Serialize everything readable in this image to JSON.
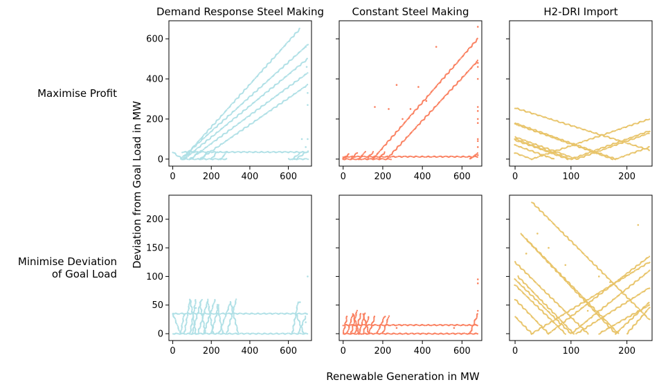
{
  "figure": {
    "ylabel": "Deviation from Goal Load in MW",
    "xlabel": "Renewable Generation in MW",
    "row_labels": [
      [
        "Maximise Profit"
      ],
      [
        "Minimise Deviation",
        "of Goal Load"
      ]
    ],
    "colors": {
      "demand_response": "#b0e0e6",
      "constant": "#fa8060",
      "h2dri": "#e8c46a"
    }
  },
  "chart_data": [
    {
      "type": "scatter",
      "title": "Demand Response Steel Making",
      "row": 0,
      "col": 0,
      "xlim": [
        -20,
        720
      ],
      "ylim": [
        -35,
        690
      ],
      "xticks": [
        0,
        200,
        400,
        600
      ],
      "yticks": [
        0,
        200,
        400,
        600
      ],
      "color": "#b0e0e6",
      "segments": [
        [
          [
            0,
            35
          ],
          [
            50,
            0
          ]
        ],
        [
          [
            50,
            0
          ],
          [
            660,
            650
          ]
        ],
        [
          [
            40,
            0
          ],
          [
            700,
            570
          ]
        ],
        [
          [
            60,
            0
          ],
          [
            700,
            500
          ]
        ],
        [
          [
            90,
            0
          ],
          [
            700,
            430
          ]
        ],
        [
          [
            140,
            0
          ],
          [
            700,
            370
          ]
        ],
        [
          [
            50,
            35
          ],
          [
            700,
            35
          ]
        ],
        [
          [
            50,
            0
          ],
          [
            280,
            0
          ]
        ],
        [
          [
            60,
            0
          ],
          [
            90,
            35
          ]
        ],
        [
          [
            100,
            0
          ],
          [
            130,
            35
          ]
        ],
        [
          [
            150,
            0
          ],
          [
            180,
            35
          ]
        ],
        [
          [
            200,
            0
          ],
          [
            230,
            35
          ]
        ],
        [
          [
            250,
            0
          ],
          [
            280,
            35
          ]
        ],
        [
          [
            620,
            0
          ],
          [
            660,
            30
          ]
        ],
        [
          [
            640,
            0
          ],
          [
            700,
            40
          ]
        ],
        [
          [
            600,
            0
          ],
          [
            700,
            0
          ]
        ]
      ],
      "points": [
        [
          690,
          560
        ],
        [
          695,
          460
        ],
        [
          700,
          330
        ],
        [
          700,
          100
        ],
        [
          690,
          60
        ],
        [
          670,
          100
        ],
        [
          700,
          270
        ],
        [
          630,
          0
        ]
      ]
    },
    {
      "type": "scatter",
      "title": "Constant Steel Making",
      "row": 0,
      "col": 1,
      "xlim": [
        -20,
        700
      ],
      "ylim": [
        -35,
        690
      ],
      "xticks": [
        0,
        200,
        400,
        600
      ],
      "yticks": [
        0,
        200,
        400,
        600
      ],
      "color": "#fa8060",
      "segments": [
        [
          [
            0,
            12
          ],
          [
            680,
            12
          ]
        ],
        [
          [
            0,
            0
          ],
          [
            240,
            0
          ]
        ],
        [
          [
            220,
            0
          ],
          [
            680,
            490
          ]
        ],
        [
          [
            150,
            0
          ],
          [
            680,
            600
          ]
        ],
        [
          [
            0,
            0
          ],
          [
            30,
            25
          ]
        ],
        [
          [
            40,
            0
          ],
          [
            70,
            30
          ]
        ],
        [
          [
            80,
            0
          ],
          [
            110,
            35
          ]
        ],
        [
          [
            120,
            0
          ],
          [
            150,
            35
          ]
        ],
        [
          [
            180,
            0
          ],
          [
            210,
            35
          ]
        ],
        [
          [
            640,
            0
          ],
          [
            680,
            30
          ]
        ]
      ],
      "points": [
        [
          470,
          560
        ],
        [
          420,
          290
        ],
        [
          380,
          360
        ],
        [
          270,
          370
        ],
        [
          160,
          260
        ],
        [
          230,
          250
        ],
        [
          680,
          660
        ],
        [
          680,
          480
        ],
        [
          680,
          460
        ],
        [
          680,
          400
        ],
        [
          680,
          260
        ],
        [
          680,
          240
        ],
        [
          680,
          200
        ],
        [
          680,
          180
        ],
        [
          680,
          100
        ],
        [
          680,
          90
        ],
        [
          680,
          60
        ],
        [
          680,
          20
        ],
        [
          340,
          250
        ],
        [
          300,
          200
        ]
      ]
    },
    {
      "type": "scatter",
      "title": "H2-DRI Import",
      "row": 0,
      "col": 2,
      "xlim": [
        -10,
        245
      ],
      "ylim": [
        -35,
        690
      ],
      "xticks": [
        0,
        100,
        200
      ],
      "yticks": [
        0,
        200,
        400,
        600
      ],
      "color": "#e8c46a",
      "segments": [
        [
          [
            0,
            255
          ],
          [
            240,
            45
          ]
        ],
        [
          [
            0,
            180
          ],
          [
            180,
            0
          ]
        ],
        [
          [
            0,
            110
          ],
          [
            110,
            0
          ]
        ],
        [
          [
            0,
            95
          ],
          [
            95,
            0
          ]
        ],
        [
          [
            0,
            70
          ],
          [
            70,
            0
          ]
        ],
        [
          [
            0,
            30
          ],
          [
            30,
            0
          ]
        ],
        [
          [
            30,
            0
          ],
          [
            240,
            200
          ]
        ],
        [
          [
            100,
            0
          ],
          [
            240,
            140
          ]
        ],
        [
          [
            110,
            0
          ],
          [
            240,
            130
          ]
        ],
        [
          [
            180,
            0
          ],
          [
            240,
            60
          ]
        ],
        [
          [
            0,
            175
          ],
          [
            175,
            0
          ]
        ],
        [
          [
            0,
            100
          ],
          [
            100,
            0
          ]
        ]
      ],
      "points": []
    },
    {
      "type": "scatter",
      "title": "",
      "row": 1,
      "col": 0,
      "xlim": [
        -20,
        720
      ],
      "ylim": [
        -12,
        242
      ],
      "xticks": [
        0,
        200,
        400,
        600
      ],
      "yticks": [
        0,
        50,
        100,
        150,
        200
      ],
      "color": "#b0e0e6",
      "segments": [
        [
          [
            0,
            35
          ],
          [
            700,
            35
          ]
        ],
        [
          [
            0,
            0
          ],
          [
            700,
            0
          ]
        ],
        [
          [
            0,
            35
          ],
          [
            40,
            0
          ]
        ],
        [
          [
            40,
            0
          ],
          [
            60,
            35
          ]
        ],
        [
          [
            60,
            0
          ],
          [
            90,
            60
          ]
        ],
        [
          [
            90,
            0
          ],
          [
            120,
            60
          ]
        ],
        [
          [
            100,
            0
          ],
          [
            150,
            60
          ]
        ],
        [
          [
            130,
            0
          ],
          [
            180,
            55
          ]
        ],
        [
          [
            160,
            0
          ],
          [
            220,
            60
          ]
        ],
        [
          [
            200,
            0
          ],
          [
            240,
            50
          ]
        ],
        [
          [
            240,
            0
          ],
          [
            300,
            55
          ]
        ],
        [
          [
            280,
            0
          ],
          [
            330,
            60
          ]
        ],
        [
          [
            90,
            60
          ],
          [
            120,
            0
          ]
        ],
        [
          [
            140,
            55
          ],
          [
            170,
            0
          ]
        ],
        [
          [
            180,
            60
          ],
          [
            210,
            0
          ]
        ],
        [
          [
            230,
            50
          ],
          [
            260,
            0
          ]
        ],
        [
          [
            300,
            55
          ],
          [
            340,
            0
          ]
        ],
        [
          [
            620,
            0
          ],
          [
            650,
            55
          ]
        ],
        [
          [
            650,
            0
          ],
          [
            690,
            30
          ]
        ],
        [
          [
            640,
            35
          ],
          [
            680,
            0
          ]
        ]
      ],
      "points": [
        [
          700,
          100
        ],
        [
          660,
          55
        ],
        [
          690,
          20
        ],
        [
          120,
          45
        ],
        [
          200,
          40
        ]
      ]
    },
    {
      "type": "scatter",
      "title": "",
      "row": 1,
      "col": 1,
      "xlim": [
        -20,
        700
      ],
      "ylim": [
        -12,
        242
      ],
      "xticks": [
        0,
        200,
        400,
        600
      ],
      "yticks": [
        0,
        50,
        100,
        150,
        200
      ],
      "color": "#fa8060",
      "segments": [
        [
          [
            0,
            15
          ],
          [
            680,
            15
          ]
        ],
        [
          [
            0,
            0
          ],
          [
            680,
            0
          ]
        ],
        [
          [
            0,
            0
          ],
          [
            20,
            30
          ]
        ],
        [
          [
            20,
            0
          ],
          [
            50,
            35
          ]
        ],
        [
          [
            40,
            0
          ],
          [
            70,
            40
          ]
        ],
        [
          [
            60,
            0
          ],
          [
            90,
            35
          ]
        ],
        [
          [
            80,
            0
          ],
          [
            110,
            35
          ]
        ],
        [
          [
            100,
            0
          ],
          [
            130,
            30
          ]
        ],
        [
          [
            130,
            0
          ],
          [
            160,
            30
          ]
        ],
        [
          [
            170,
            0
          ],
          [
            210,
            30
          ]
        ],
        [
          [
            200,
            0
          ],
          [
            230,
            30
          ]
        ],
        [
          [
            640,
            0
          ],
          [
            680,
            35
          ]
        ],
        [
          [
            50,
            35
          ],
          [
            80,
            0
          ]
        ],
        [
          [
            100,
            35
          ],
          [
            130,
            0
          ]
        ]
      ],
      "points": [
        [
          680,
          95
        ],
        [
          680,
          88
        ],
        [
          680,
          40
        ],
        [
          270,
          10
        ],
        [
          560,
          10
        ]
      ]
    },
    {
      "type": "scatter",
      "title": "",
      "row": 1,
      "col": 2,
      "xlim": [
        -10,
        245
      ],
      "ylim": [
        -12,
        242
      ],
      "xticks": [
        0,
        100,
        200
      ],
      "yticks": [
        0,
        50,
        100,
        150,
        200
      ],
      "color": "#e8c46a",
      "segments": [
        [
          [
            30,
            230
          ],
          [
            240,
            25
          ]
        ],
        [
          [
            10,
            175
          ],
          [
            185,
            0
          ]
        ],
        [
          [
            20,
            165
          ],
          [
            180,
            0
          ]
        ],
        [
          [
            0,
            125
          ],
          [
            130,
            0
          ]
        ],
        [
          [
            0,
            95
          ],
          [
            100,
            0
          ]
        ],
        [
          [
            0,
            85
          ],
          [
            90,
            0
          ]
        ],
        [
          [
            0,
            60
          ],
          [
            60,
            0
          ]
        ],
        [
          [
            0,
            30
          ],
          [
            30,
            0
          ]
        ],
        [
          [
            30,
            0
          ],
          [
            240,
            125
          ]
        ],
        [
          [
            60,
            0
          ],
          [
            240,
            135
          ]
        ],
        [
          [
            100,
            0
          ],
          [
            240,
            110
          ]
        ],
        [
          [
            110,
            0
          ],
          [
            240,
            80
          ]
        ],
        [
          [
            180,
            0
          ],
          [
            240,
            55
          ]
        ],
        [
          [
            150,
            0
          ],
          [
            240,
            50
          ]
        ],
        [
          [
            200,
            0
          ],
          [
            240,
            45
          ]
        ],
        [
          [
            5,
            100
          ],
          [
            105,
            0
          ]
        ]
      ],
      "points": [
        [
          220,
          190
        ],
        [
          40,
          175
        ],
        [
          60,
          150
        ],
        [
          20,
          140
        ],
        [
          90,
          120
        ],
        [
          150,
          100
        ],
        [
          170,
          90
        ],
        [
          130,
          40
        ]
      ]
    }
  ]
}
